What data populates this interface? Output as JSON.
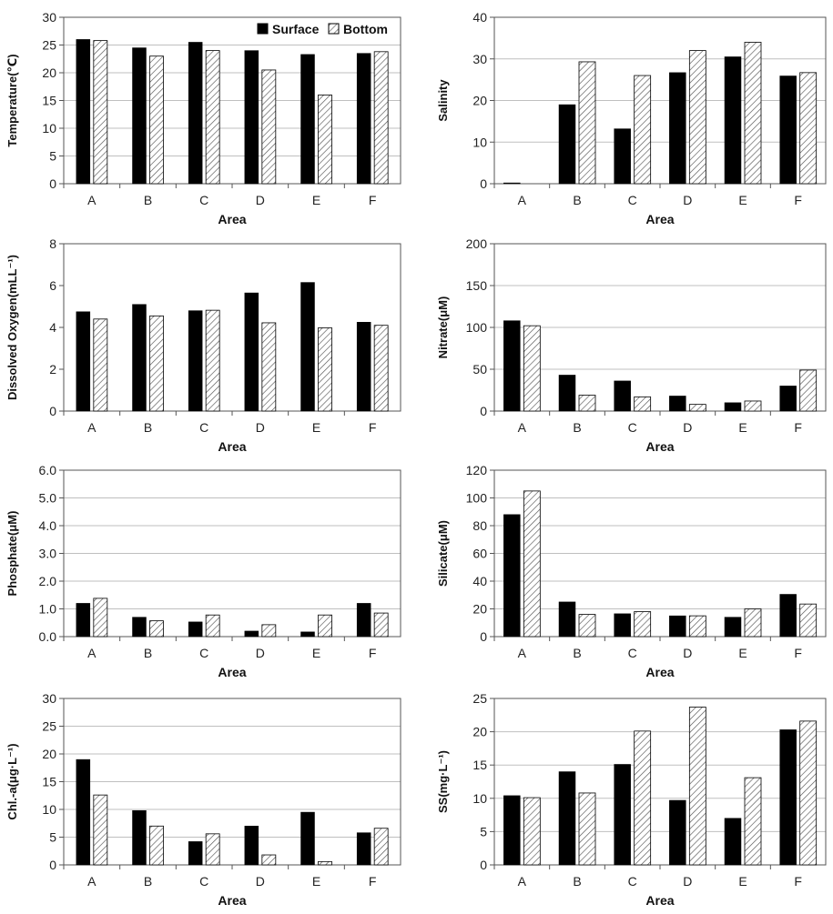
{
  "legend": {
    "surface": "Surface",
    "bottom": "Bottom"
  },
  "colors": {
    "surface": "#000000",
    "bottom": "#ffffff",
    "hatch": "#555555",
    "grid": "#bfbfbf",
    "axis": "#555555"
  },
  "chart_data": [
    {
      "type": "bar",
      "categories": [
        "A",
        "B",
        "C",
        "D",
        "E",
        "F"
      ],
      "ylabel": "Temperature(℃)",
      "xlabel": "Area",
      "ylim": [
        0,
        30
      ],
      "yticks": [
        "0",
        "5",
        "10",
        "15",
        "20",
        "25",
        "30"
      ],
      "grid": true,
      "legend": "top-right",
      "series": [
        {
          "name": "Surface",
          "values": [
            26.0,
            24.5,
            25.5,
            24.0,
            23.3,
            23.5
          ]
        },
        {
          "name": "Bottom",
          "values": [
            25.8,
            23.0,
            24.0,
            20.5,
            16.0,
            23.8
          ]
        }
      ]
    },
    {
      "type": "bar",
      "categories": [
        "A",
        "B",
        "C",
        "D",
        "E",
        "F"
      ],
      "ylabel": "Salinity",
      "xlabel": "Area",
      "ylim": [
        0,
        40
      ],
      "yticks": [
        "0",
        "10",
        "20",
        "30",
        "40"
      ],
      "grid": true,
      "series": [
        {
          "name": "Surface",
          "values": [
            0.2,
            19.0,
            13.2,
            26.7,
            30.5,
            25.9
          ]
        },
        {
          "name": "Bottom",
          "values": [
            0.0,
            29.3,
            26.0,
            32.0,
            34.0,
            26.7
          ]
        }
      ]
    },
    {
      "type": "bar",
      "categories": [
        "A",
        "B",
        "C",
        "D",
        "E",
        "F"
      ],
      "ylabel": "Dissolved Oxygen(mLL⁻¹)",
      "xlabel": "Area",
      "ylim": [
        0,
        8
      ],
      "yticks": [
        "0",
        "2",
        "4",
        "6",
        "8"
      ],
      "grid": false,
      "series": [
        {
          "name": "Surface",
          "values": [
            4.75,
            5.1,
            4.8,
            5.65,
            6.15,
            4.25
          ]
        },
        {
          "name": "Bottom",
          "values": [
            4.4,
            4.55,
            4.82,
            4.22,
            3.98,
            4.1
          ]
        }
      ]
    },
    {
      "type": "bar",
      "categories": [
        "A",
        "B",
        "C",
        "D",
        "E",
        "F"
      ],
      "ylabel": "Nitrate(μM)",
      "xlabel": "Area",
      "ylim": [
        0,
        200
      ],
      "yticks": [
        "0",
        "50",
        "100",
        "150",
        "200"
      ],
      "grid": true,
      "series": [
        {
          "name": "Surface",
          "values": [
            108,
            43,
            36,
            18,
            10,
            30
          ]
        },
        {
          "name": "Bottom",
          "values": [
            102,
            19,
            17,
            8,
            12,
            49
          ]
        }
      ]
    },
    {
      "type": "bar",
      "categories": [
        "A",
        "B",
        "C",
        "D",
        "E",
        "F"
      ],
      "ylabel": "Phosphate(μM)",
      "xlabel": "Area",
      "ylim": [
        0,
        6
      ],
      "yticks": [
        "0.0",
        "1.0",
        "2.0",
        "3.0",
        "4.0",
        "5.0",
        "6.0"
      ],
      "grid": true,
      "series": [
        {
          "name": "Surface",
          "values": [
            1.2,
            0.7,
            0.53,
            0.2,
            0.17,
            1.2
          ]
        },
        {
          "name": "Bottom",
          "values": [
            1.38,
            0.57,
            0.78,
            0.43,
            0.78,
            0.85
          ]
        }
      ]
    },
    {
      "type": "bar",
      "categories": [
        "A",
        "B",
        "C",
        "D",
        "E",
        "F"
      ],
      "ylabel": "Silicate(μM)",
      "xlabel": "Area",
      "ylim": [
        0,
        120
      ],
      "yticks": [
        "0",
        "20",
        "40",
        "60",
        "80",
        "100",
        "120"
      ],
      "grid": true,
      "series": [
        {
          "name": "Surface",
          "values": [
            88,
            25,
            16.5,
            15,
            14,
            30.5
          ]
        },
        {
          "name": "Bottom",
          "values": [
            105,
            16,
            18,
            15,
            20,
            23.5
          ]
        }
      ]
    },
    {
      "type": "bar",
      "categories": [
        "A",
        "B",
        "C",
        "D",
        "E",
        "F"
      ],
      "ylabel": "Chl.-a(μg·L⁻¹)",
      "xlabel": "Area",
      "ylim": [
        0,
        30
      ],
      "yticks": [
        "0",
        "5",
        "10",
        "15",
        "20",
        "25",
        "30"
      ],
      "grid": true,
      "series": [
        {
          "name": "Surface",
          "values": [
            19.0,
            9.8,
            4.2,
            7.0,
            9.5,
            5.8
          ]
        },
        {
          "name": "Bottom",
          "values": [
            12.6,
            7.0,
            5.6,
            1.8,
            0.6,
            6.6
          ]
        }
      ]
    },
    {
      "type": "bar",
      "categories": [
        "A",
        "B",
        "C",
        "D",
        "E",
        "F"
      ],
      "ylabel": "SS(mg·L⁻¹)",
      "xlabel": "Area",
      "ylim": [
        0,
        25
      ],
      "yticks": [
        "0",
        "5",
        "10",
        "15",
        "20",
        "25"
      ],
      "grid": true,
      "series": [
        {
          "name": "Surface",
          "values": [
            10.4,
            14.0,
            15.1,
            9.7,
            7.0,
            20.3
          ]
        },
        {
          "name": "Bottom",
          "values": [
            10.1,
            10.8,
            20.1,
            23.7,
            13.1,
            21.6
          ]
        }
      ]
    }
  ]
}
